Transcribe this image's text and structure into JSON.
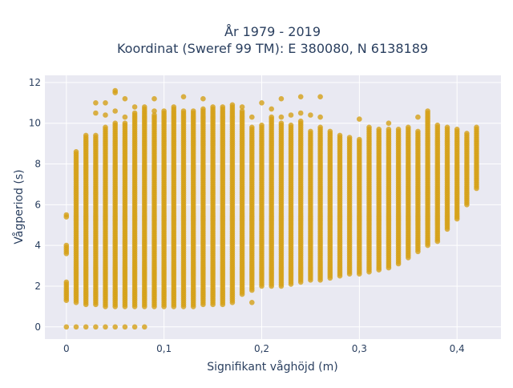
{
  "chart_data": {
    "type": "scatter",
    "title_lines": [
      "År 1979 - 2019",
      "Koordinat (Sweref 99 TM): E 380080, N 6138189"
    ],
    "xlabel": "Signifikant våghöjd (m)",
    "ylabel": "Vågperiod (s)",
    "xlim": [
      -0.022,
      0.445
    ],
    "ylim": [
      -0.6,
      12.35
    ],
    "x_ticks": [
      0,
      0.1,
      0.2,
      0.3,
      0.4
    ],
    "x_tick_labels": [
      "0",
      "0,1",
      "0,2",
      "0,3",
      "0,4"
    ],
    "y_ticks": [
      0,
      2,
      4,
      6,
      8,
      10,
      12
    ],
    "y_tick_labels": [
      "0",
      "2",
      "4",
      "6",
      "8",
      "10",
      "12"
    ],
    "grid": true,
    "background": "#e9e9f2",
    "marker_color": "#d4a017",
    "marker_opacity": 0.8,
    "columns": [
      {
        "x": 0.0,
        "ranges": [
          [
            1.3,
            2.2
          ],
          [
            3.6,
            4.0
          ],
          [
            5.4,
            5.5
          ]
        ],
        "extras": [
          0.0
        ]
      },
      {
        "x": 0.01,
        "ranges": [
          [
            1.2,
            8.6
          ]
        ],
        "extras": [
          0.0
        ]
      },
      {
        "x": 0.02,
        "ranges": [
          [
            1.1,
            9.4
          ]
        ],
        "extras": [
          0.0
        ]
      },
      {
        "x": 0.03,
        "ranges": [
          [
            1.1,
            9.4
          ]
        ],
        "extras": [
          0.0,
          10.5,
          11.0
        ]
      },
      {
        "x": 0.04,
        "ranges": [
          [
            1.0,
            9.8
          ]
        ],
        "extras": [
          0.0,
          10.4,
          11.0
        ]
      },
      {
        "x": 0.05,
        "ranges": [
          [
            1.0,
            10.0
          ]
        ],
        "extras": [
          0.0,
          10.6,
          11.5,
          11.6
        ]
      },
      {
        "x": 0.06,
        "ranges": [
          [
            1.0,
            10.0
          ]
        ],
        "extras": [
          0.0,
          10.3,
          11.2
        ]
      },
      {
        "x": 0.07,
        "ranges": [
          [
            1.0,
            10.5
          ]
        ],
        "extras": [
          0.0,
          10.8
        ]
      },
      {
        "x": 0.08,
        "ranges": [
          [
            1.0,
            10.8
          ]
        ],
        "extras": [
          0.0
        ]
      },
      {
        "x": 0.09,
        "ranges": [
          [
            1.0,
            10.4
          ]
        ],
        "extras": [
          10.6,
          11.2
        ]
      },
      {
        "x": 0.1,
        "ranges": [
          [
            1.0,
            10.5
          ]
        ],
        "extras": [
          10.6
        ]
      },
      {
        "x": 0.11,
        "ranges": [
          [
            1.0,
            10.7
          ]
        ],
        "extras": [
          10.8
        ]
      },
      {
        "x": 0.12,
        "ranges": [
          [
            1.0,
            10.6
          ]
        ],
        "extras": [
          11.3
        ]
      },
      {
        "x": 0.13,
        "ranges": [
          [
            1.0,
            10.5
          ]
        ],
        "extras": [
          10.6
        ]
      },
      {
        "x": 0.14,
        "ranges": [
          [
            1.1,
            10.7
          ]
        ],
        "extras": [
          11.2
        ]
      },
      {
        "x": 0.15,
        "ranges": [
          [
            1.1,
            10.8
          ]
        ],
        "extras": []
      },
      {
        "x": 0.16,
        "ranges": [
          [
            1.1,
            10.8
          ]
        ],
        "extras": []
      },
      {
        "x": 0.17,
        "ranges": [
          [
            1.2,
            10.9
          ]
        ],
        "extras": []
      },
      {
        "x": 0.18,
        "ranges": [
          [
            1.6,
            10.6
          ]
        ],
        "extras": [
          10.8
        ]
      },
      {
        "x": 0.19,
        "ranges": [
          [
            1.8,
            9.8
          ]
        ],
        "extras": [
          1.2,
          10.3
        ]
      },
      {
        "x": 0.2,
        "ranges": [
          [
            2.0,
            9.9
          ]
        ],
        "extras": [
          11.0
        ]
      },
      {
        "x": 0.21,
        "ranges": [
          [
            2.0,
            10.3
          ]
        ],
        "extras": [
          10.7
        ]
      },
      {
        "x": 0.22,
        "ranges": [
          [
            2.0,
            10.0
          ]
        ],
        "extras": [
          10.3,
          11.2
        ]
      },
      {
        "x": 0.23,
        "ranges": [
          [
            2.1,
            9.9
          ]
        ],
        "extras": [
          10.4
        ]
      },
      {
        "x": 0.24,
        "ranges": [
          [
            2.2,
            10.1
          ]
        ],
        "extras": [
          10.5,
          11.3
        ]
      },
      {
        "x": 0.25,
        "ranges": [
          [
            2.3,
            9.6
          ]
        ],
        "extras": [
          10.4
        ]
      },
      {
        "x": 0.26,
        "ranges": [
          [
            2.3,
            9.8
          ]
        ],
        "extras": [
          10.3,
          11.3
        ]
      },
      {
        "x": 0.27,
        "ranges": [
          [
            2.4,
            9.6
          ]
        ],
        "extras": []
      },
      {
        "x": 0.28,
        "ranges": [
          [
            2.5,
            9.4
          ]
        ],
        "extras": []
      },
      {
        "x": 0.29,
        "ranges": [
          [
            2.6,
            9.3
          ]
        ],
        "extras": []
      },
      {
        "x": 0.3,
        "ranges": [
          [
            2.6,
            9.2
          ]
        ],
        "extras": [
          10.2
        ]
      },
      {
        "x": 0.31,
        "ranges": [
          [
            2.7,
            9.8
          ]
        ],
        "extras": []
      },
      {
        "x": 0.32,
        "ranges": [
          [
            2.8,
            9.7
          ]
        ],
        "extras": []
      },
      {
        "x": 0.33,
        "ranges": [
          [
            2.9,
            9.7
          ]
        ],
        "extras": [
          10.0
        ]
      },
      {
        "x": 0.34,
        "ranges": [
          [
            3.1,
            9.7
          ]
        ],
        "extras": []
      },
      {
        "x": 0.35,
        "ranges": [
          [
            3.4,
            9.8
          ]
        ],
        "extras": []
      },
      {
        "x": 0.36,
        "ranges": [
          [
            3.7,
            9.6
          ]
        ],
        "extras": [
          10.3
        ]
      },
      {
        "x": 0.37,
        "ranges": [
          [
            4.0,
            10.6
          ]
        ],
        "extras": []
      },
      {
        "x": 0.38,
        "ranges": [
          [
            4.2,
            9.8
          ]
        ],
        "extras": [
          9.9
        ]
      },
      {
        "x": 0.39,
        "ranges": [
          [
            4.8,
            9.8
          ]
        ],
        "extras": []
      },
      {
        "x": 0.4,
        "ranges": [
          [
            5.3,
            9.7
          ]
        ],
        "extras": []
      },
      {
        "x": 0.41,
        "ranges": [
          [
            6.0,
            9.5
          ]
        ],
        "extras": []
      },
      {
        "x": 0.42,
        "ranges": [
          [
            6.8,
            9.8
          ]
        ],
        "extras": []
      }
    ]
  }
}
